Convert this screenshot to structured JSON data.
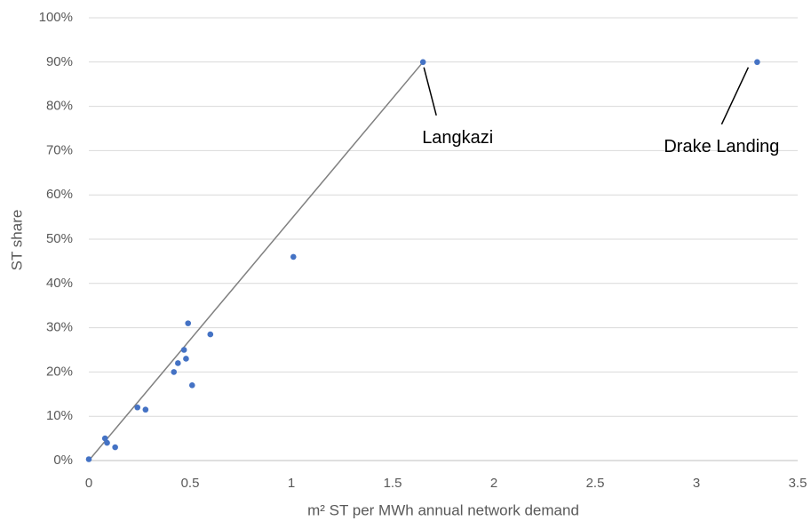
{
  "chart_data": {
    "type": "scatter",
    "x_label": "m² ST per MWh annual network demand",
    "y_label": "ST share",
    "series": [
      {
        "color": "#4472c4",
        "x": [
          0,
          0.08,
          0.09,
          0.13,
          0.24,
          0.28,
          0.42,
          0.44,
          0.47,
          0.48,
          0.49,
          0.51,
          0.6,
          1.01,
          1.65,
          3.3
        ],
        "values": [
          0.3,
          5,
          4,
          3,
          12,
          11.5,
          20,
          22,
          25,
          23,
          31,
          17,
          28.5,
          46,
          90,
          90
        ]
      }
    ],
    "trendline": {
      "color": "#808080",
      "x": [
        0,
        1.65
      ],
      "values": [
        0,
        90
      ]
    },
    "annotations": [
      {
        "text": "Langkazi",
        "x": 1.65,
        "y": 90
      },
      {
        "text": "Drake Landing",
        "x": 3.3,
        "y": 90
      }
    ],
    "xlim": [
      0,
      3.5
    ],
    "xticks": [
      0,
      0.5,
      1,
      1.5,
      2,
      2.5,
      3,
      3.5
    ],
    "ylim": [
      0,
      100
    ],
    "yticks": [
      {
        "value": 0,
        "label": "0%"
      },
      {
        "value": 10,
        "label": "10%"
      },
      {
        "value": 20,
        "label": "20%"
      },
      {
        "value": 30,
        "label": "30%"
      },
      {
        "value": 40,
        "label": "40%"
      },
      {
        "value": 50,
        "label": "50%"
      },
      {
        "value": 60,
        "label": "60%"
      },
      {
        "value": 70,
        "label": "70%"
      },
      {
        "value": 80,
        "label": "80%"
      },
      {
        "value": 90,
        "label": "90%"
      },
      {
        "value": 100,
        "label": "100%"
      }
    ],
    "grid": true
  }
}
